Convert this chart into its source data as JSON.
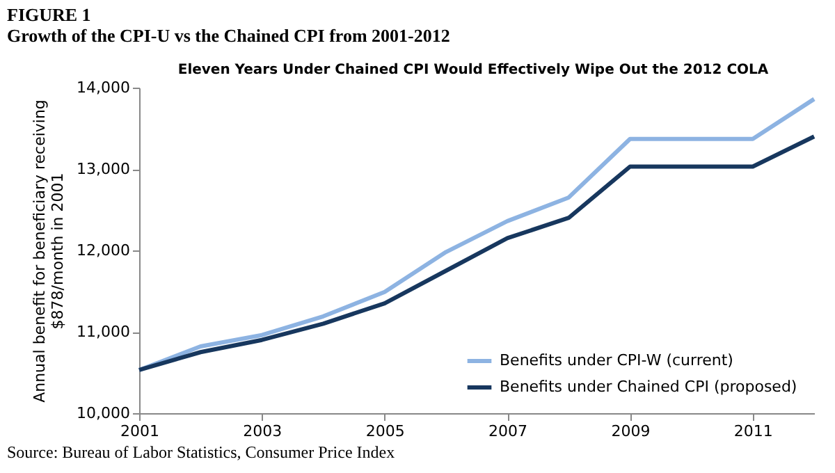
{
  "chart_data": {
    "type": "line",
    "title": "FIGURE 1",
    "subtitle": "Growth of the CPI-U vs the Chained CPI from 2001-2012",
    "annotations": [
      "Eleven Years Under Chained CPI Would Effectively Wipe Out the 2012 COLA",
      "Source: Bureau of Labor Statistics, Consumer Price Index"
    ],
    "ylabel": "Annual benefit for beneficiary receiving\n$878/month in 2001",
    "x": [
      2001,
      2002,
      2003,
      2004,
      2005,
      2006,
      2007,
      2008,
      2009,
      2010,
      2011,
      2012
    ],
    "series": [
      {
        "name": "Benefits under CPI-W (current)",
        "color": "#8db3e2",
        "values": [
          10530,
          10820,
          10960,
          11190,
          11490,
          11980,
          12360,
          12650,
          13370,
          13370,
          13370,
          13860
        ]
      },
      {
        "name": "Benefits under Chained CPI (proposed)",
        "color": "#17375e",
        "values": [
          10530,
          10750,
          10900,
          11100,
          11350,
          11750,
          12150,
          12400,
          13030,
          13030,
          13030,
          13400
        ]
      }
    ],
    "xlim": [
      2001,
      2012
    ],
    "xticks": [
      2001,
      2003,
      2005,
      2007,
      2009,
      2011
    ],
    "ylim": [
      10000,
      14000
    ],
    "yticks": [
      {
        "value": 10000,
        "label": "10,000"
      },
      {
        "value": 11000,
        "label": "11,000"
      },
      {
        "value": 12000,
        "label": "12,000"
      },
      {
        "value": 13000,
        "label": "13,000"
      },
      {
        "value": 14000,
        "label": "14,000"
      }
    ],
    "grid": false,
    "legend": "bottom right",
    "marker": "none",
    "line_style": "solid"
  }
}
